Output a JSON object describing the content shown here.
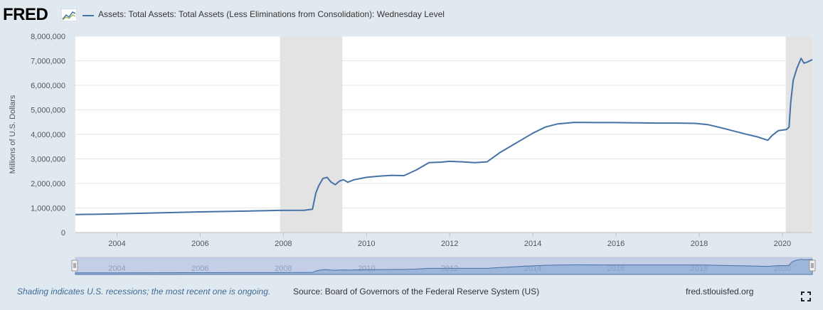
{
  "logo": {
    "text": "FRED"
  },
  "legend": {
    "label": "Assets: Total Assets: Total Assets (Less Eliminations from Consolidation): Wednesday Level"
  },
  "footer": {
    "note": "Shading indicates U.S. recessions; the most recent one is ongoing.",
    "source": "Source: Board of Governors of the Federal Reserve System (US)",
    "site": "fred.stlouisfed.org"
  },
  "icons": {
    "logo": "fred-chart-icon",
    "fullscreen": "fullscreen-icon"
  },
  "colors": {
    "series": "#4572a7",
    "recession": "#e3e3e3",
    "background": "#e1e9f0",
    "navigator": "#a7b7da",
    "note": "#3e6a97"
  },
  "chart_data": {
    "type": "line",
    "ylabel": "Millions of U.S. Dollars",
    "ylim": [
      0,
      8000000
    ],
    "xlim": [
      2003.0,
      2020.72
    ],
    "yticks": [
      "0",
      "1,000,000",
      "2,000,000",
      "3,000,000",
      "4,000,000",
      "5,000,000",
      "6,000,000",
      "7,000,000",
      "8,000,000"
    ],
    "xticks": [
      "2004",
      "2006",
      "2008",
      "2010",
      "2012",
      "2014",
      "2016",
      "2018",
      "2020"
    ],
    "grid": true,
    "legend_position": "top-left",
    "recessions": [
      [
        2007.92,
        2009.42
      ],
      [
        2020.08,
        2020.72
      ]
    ],
    "series": [
      {
        "name": "Assets: Total Assets: Total Assets (Less Eliminations from Consolidation): Wednesday Level",
        "points": [
          [
            2003.0,
            730000
          ],
          [
            2004.0,
            760000
          ],
          [
            2005.0,
            800000
          ],
          [
            2006.0,
            840000
          ],
          [
            2007.0,
            870000
          ],
          [
            2007.9,
            900000
          ],
          [
            2008.5,
            905000
          ],
          [
            2008.7,
            950000
          ],
          [
            2008.78,
            1600000
          ],
          [
            2008.85,
            1900000
          ],
          [
            2008.95,
            2200000
          ],
          [
            2009.05,
            2250000
          ],
          [
            2009.15,
            2050000
          ],
          [
            2009.25,
            1950000
          ],
          [
            2009.35,
            2100000
          ],
          [
            2009.45,
            2150000
          ],
          [
            2009.55,
            2050000
          ],
          [
            2009.7,
            2150000
          ],
          [
            2010.0,
            2250000
          ],
          [
            2010.3,
            2300000
          ],
          [
            2010.6,
            2330000
          ],
          [
            2010.9,
            2320000
          ],
          [
            2011.2,
            2550000
          ],
          [
            2011.5,
            2850000
          ],
          [
            2011.8,
            2870000
          ],
          [
            2012.0,
            2900000
          ],
          [
            2012.3,
            2880000
          ],
          [
            2012.6,
            2850000
          ],
          [
            2012.9,
            2880000
          ],
          [
            2013.2,
            3250000
          ],
          [
            2013.5,
            3550000
          ],
          [
            2013.8,
            3850000
          ],
          [
            2014.0,
            4050000
          ],
          [
            2014.3,
            4300000
          ],
          [
            2014.6,
            4430000
          ],
          [
            2015.0,
            4490000
          ],
          [
            2015.5,
            4480000
          ],
          [
            2016.0,
            4480000
          ],
          [
            2016.5,
            4470000
          ],
          [
            2017.0,
            4460000
          ],
          [
            2017.5,
            4460000
          ],
          [
            2017.9,
            4450000
          ],
          [
            2018.2,
            4400000
          ],
          [
            2018.5,
            4280000
          ],
          [
            2018.8,
            4150000
          ],
          [
            2019.1,
            4020000
          ],
          [
            2019.4,
            3900000
          ],
          [
            2019.65,
            3760000
          ],
          [
            2019.75,
            3950000
          ],
          [
            2019.9,
            4150000
          ],
          [
            2020.1,
            4200000
          ],
          [
            2020.16,
            4300000
          ],
          [
            2020.2,
            5300000
          ],
          [
            2020.26,
            6200000
          ],
          [
            2020.35,
            6700000
          ],
          [
            2020.45,
            7100000
          ],
          [
            2020.52,
            6900000
          ],
          [
            2020.6,
            6950000
          ],
          [
            2020.72,
            7050000
          ]
        ]
      }
    ]
  },
  "navigator": {
    "ticks": [
      "2004",
      "2006",
      "2008",
      "2010",
      "2012",
      "2014",
      "2016",
      "2018",
      "2020"
    ]
  }
}
